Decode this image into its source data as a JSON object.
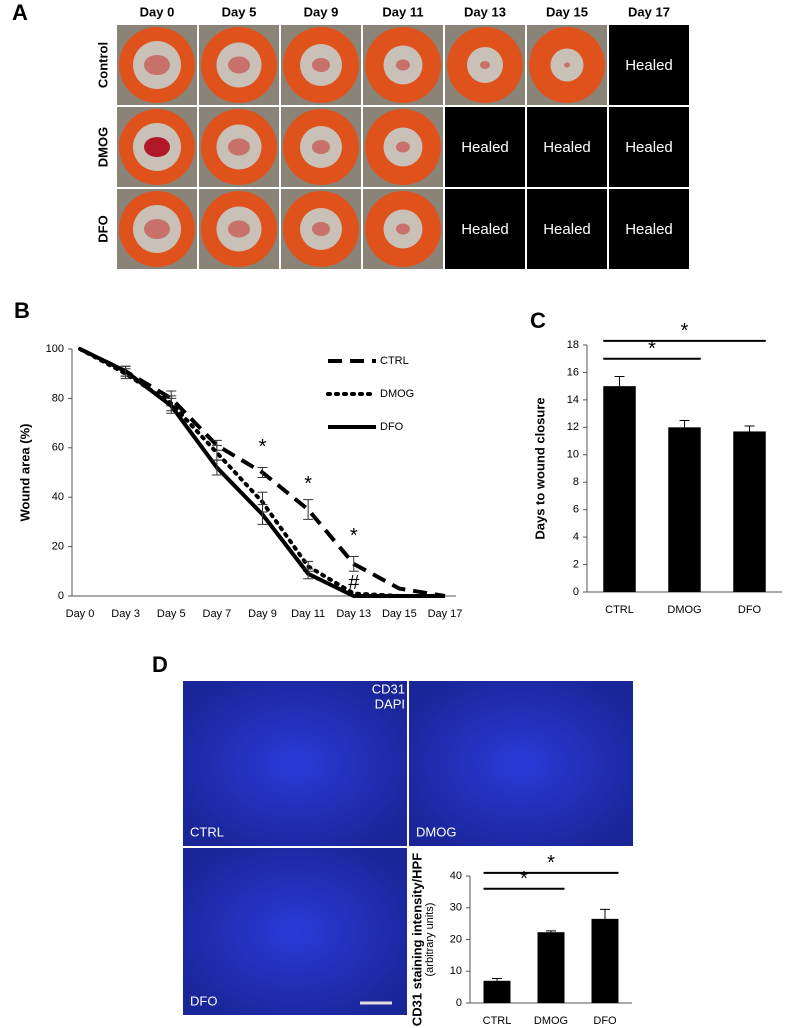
{
  "panel_a": {
    "letter": "A",
    "columns": [
      "Day 0",
      "Day 5",
      "Day 9",
      "Day 11",
      "Day 13",
      "Day 15",
      "Day 17"
    ],
    "rows": [
      {
        "label": "Control",
        "cells": [
          null,
          null,
          null,
          null,
          null,
          null,
          "Healed"
        ]
      },
      {
        "label": "DMOG",
        "cells": [
          null,
          null,
          null,
          null,
          "Healed",
          "Healed",
          "Healed"
        ]
      },
      {
        "label": "DFO",
        "cells": [
          null,
          null,
          null,
          null,
          "Healed",
          "Healed",
          "Healed"
        ]
      }
    ]
  },
  "panel_d": {
    "letter": "D",
    "stains": [
      {
        "text": "CD31",
        "color": "#e0202a"
      },
      {
        "text": "DAPI",
        "color": "#2a3fe0"
      }
    ],
    "images": [
      "CTRL",
      "DMOG",
      "DFO"
    ]
  },
  "chart_data": [
    {
      "type": "line",
      "panel_letter": "B",
      "ylabel": "Wound area (%)",
      "categories": [
        "Day 0",
        "Day 3",
        "Day 5",
        "Day 7",
        "Day 9",
        "Day 11",
        "Day 13",
        "Day 15",
        "Day 17"
      ],
      "ylim": [
        0,
        100
      ],
      "yticks": [
        0,
        20,
        40,
        60,
        80,
        100
      ],
      "legend": "upper right",
      "series": [
        {
          "name": "CTRL",
          "color": "#000000",
          "dash": "dashed",
          "values": [
            100,
            91,
            80,
            61,
            50,
            35,
            13,
            3,
            0
          ],
          "errors": [
            0,
            2,
            3,
            2,
            2,
            4,
            3,
            0,
            0
          ]
        },
        {
          "name": "DMOG",
          "color": "#000000",
          "dash": "dotted",
          "values": [
            100,
            90,
            78,
            58,
            38,
            12,
            1,
            0,
            0
          ],
          "errors": [
            0,
            2,
            3,
            3,
            4,
            2,
            0,
            0,
            0
          ]
        },
        {
          "name": "DFO",
          "color": "#000000",
          "dash": "solid",
          "values": [
            100,
            91,
            77,
            52,
            33,
            9,
            0,
            0,
            0
          ],
          "errors": [
            0,
            2,
            3,
            3,
            4,
            2,
            0,
            0,
            0
          ]
        }
      ],
      "annotations": [
        {
          "text": "*",
          "x": "Day 9",
          "y": 60
        },
        {
          "text": "*",
          "x": "Day 11",
          "y": 45
        },
        {
          "text": "*",
          "x": "Day 13",
          "y": 24
        },
        {
          "text": "#",
          "x": "Day 13",
          "y": 5
        }
      ]
    },
    {
      "type": "bar",
      "panel_letter": "C",
      "ylabel": "Days to wound closure",
      "categories": [
        "CTRL",
        "DMOG",
        "DFO"
      ],
      "values": [
        15,
        12,
        11.7
      ],
      "errors": [
        0.7,
        0.5,
        0.4
      ],
      "color": "#000000",
      "ylim": [
        0,
        18
      ],
      "yticks": [
        0,
        2,
        4,
        6,
        8,
        10,
        12,
        14,
        16,
        18
      ],
      "significance": [
        {
          "from": "CTRL",
          "to": "DMOG",
          "label": "*",
          "y": 17
        },
        {
          "from": "CTRL",
          "to": "DFO",
          "label": "*",
          "y": 18.3
        }
      ]
    },
    {
      "type": "bar",
      "ylabel": "CD31 staining intensity/HPF",
      "ylabel_note": "(arbitrary units)",
      "categories": [
        "CTRL",
        "DMOG",
        "DFO"
      ],
      "values": [
        7,
        22.3,
        26.5
      ],
      "errors": [
        0.7,
        0.4,
        3
      ],
      "color": "#000000",
      "ylim": [
        0,
        40
      ],
      "yticks": [
        0,
        10,
        20,
        30,
        40
      ],
      "significance": [
        {
          "from": "CTRL",
          "to": "DMOG",
          "label": "*",
          "y": 36
        },
        {
          "from": "CTRL",
          "to": "DFO",
          "label": "*",
          "y": 41
        }
      ]
    }
  ]
}
